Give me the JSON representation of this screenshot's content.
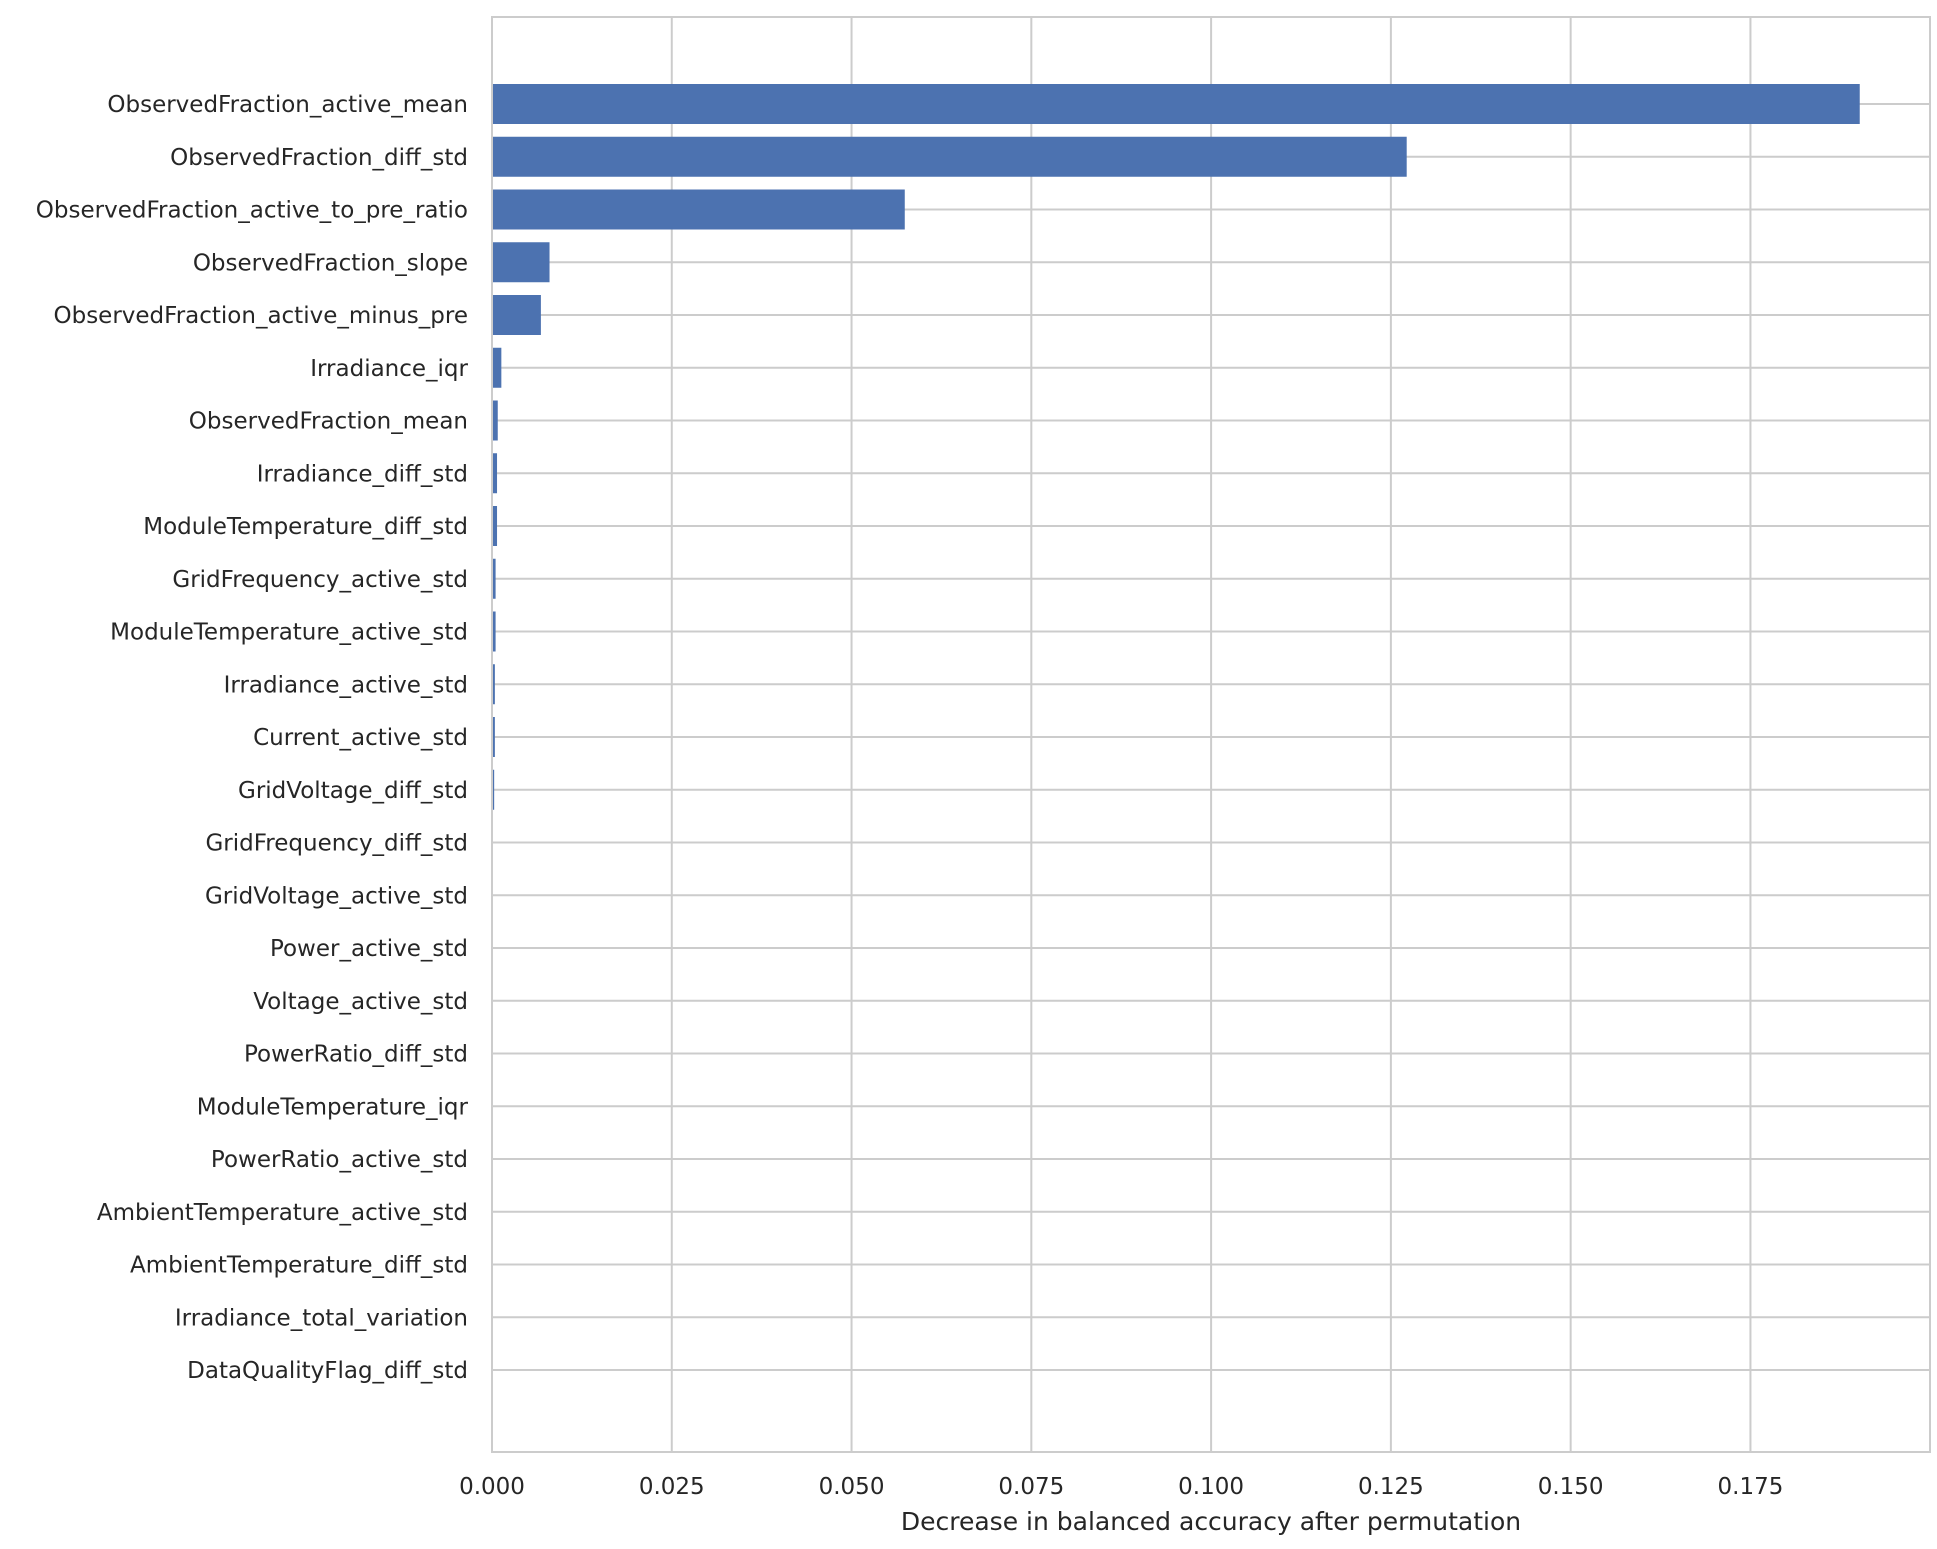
{
  "chart_data": {
    "type": "bar",
    "orientation": "horizontal",
    "title": "",
    "xlabel": "Decrease in balanced accuracy after permutation",
    "ylabel": "",
    "xlim": [
      0,
      0.2
    ],
    "grid": true,
    "bar_color": "#4c72b0",
    "categories": [
      "ObservedFraction_active_mean",
      "ObservedFraction_diff_std",
      "ObservedFraction_active_to_pre_ratio",
      "ObservedFraction_slope",
      "ObservedFraction_active_minus_pre",
      "Irradiance_iqr",
      "ObservedFraction_mean",
      "Irradiance_diff_std",
      "ModuleTemperature_diff_std",
      "GridFrequency_active_std",
      "ModuleTemperature_active_std",
      "Irradiance_active_std",
      "Current_active_std",
      "GridVoltage_diff_std",
      "GridFrequency_diff_std",
      "GridVoltage_active_std",
      "Power_active_std",
      "Voltage_active_std",
      "PowerRatio_diff_std",
      "ModuleTemperature_iqr",
      "PowerRatio_active_std",
      "AmbientTemperature_active_std",
      "AmbientTemperature_diff_std",
      "Irradiance_total_variation",
      "DataQualityFlag_diff_std"
    ],
    "values": [
      0.1902,
      0.1272,
      0.0574,
      0.008,
      0.0068,
      0.0013,
      0.0008,
      0.0007,
      0.0007,
      0.0005,
      0.0005,
      0.0004,
      0.0004,
      0.0003,
      0.0001,
      0.0001,
      0.0001,
      0.0001,
      0.0001,
      0.0,
      0.0,
      0.0,
      0.0,
      0.0,
      0.0
    ],
    "xticks": [
      0.0,
      0.025,
      0.05,
      0.075,
      0.1,
      0.125,
      0.15,
      0.175
    ],
    "xtick_labels": [
      "0.000",
      "0.025",
      "0.050",
      "0.075",
      "0.100",
      "0.125",
      "0.150",
      "0.175"
    ]
  }
}
